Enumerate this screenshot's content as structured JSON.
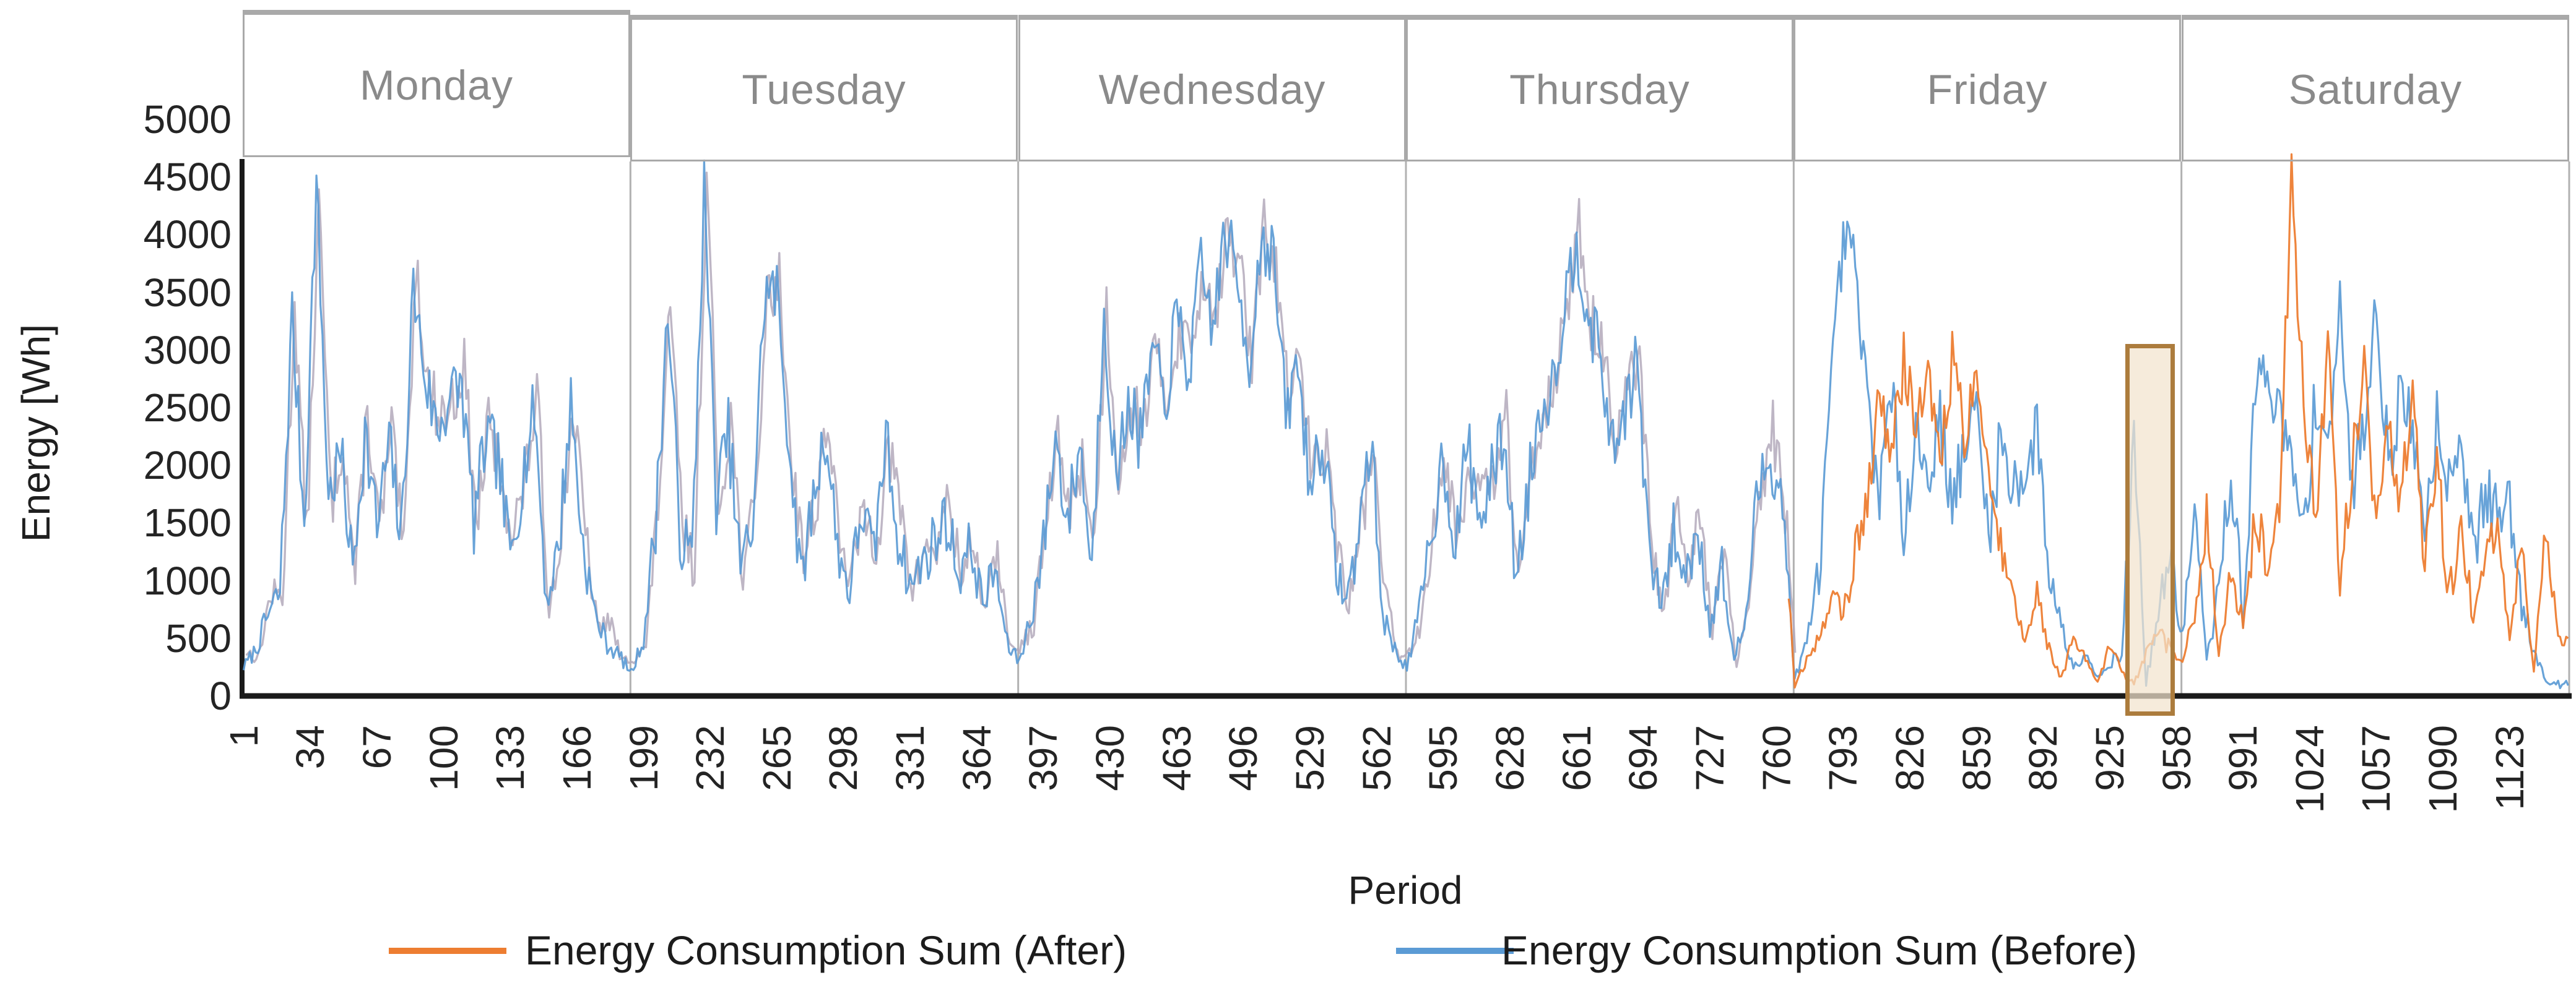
{
  "chart_data": {
    "type": "line",
    "xlabel": "Period",
    "ylabel": "Energy [Wh]",
    "ylim": [
      0,
      5000
    ],
    "ytick_interval": 500,
    "yticks": [
      0,
      500,
      1000,
      1500,
      2000,
      2500,
      3000,
      3500,
      4000,
      4500,
      5000
    ],
    "xticks": [
      1,
      34,
      67,
      100,
      133,
      166,
      199,
      232,
      265,
      298,
      331,
      364,
      397,
      430,
      463,
      496,
      529,
      562,
      595,
      628,
      661,
      694,
      727,
      760,
      793,
      826,
      859,
      892,
      925,
      958,
      991,
      1024,
      1057,
      1090,
      1123
    ],
    "x_range": [
      1,
      1152
    ],
    "grid": "vertical-day-separators-only",
    "legend_position": "bottom",
    "x_sampling": {
      "start": 1,
      "interval": 6,
      "count": 192
    },
    "day_bands": [
      {
        "label": "Monday",
        "start_period": 1,
        "end_period": 192
      },
      {
        "label": "Tuesday",
        "start_period": 193,
        "end_period": 384
      },
      {
        "label": "Wednesday",
        "start_period": 385,
        "end_period": 576
      },
      {
        "label": "Thursday",
        "start_period": 577,
        "end_period": 768
      },
      {
        "label": "Friday",
        "start_period": 769,
        "end_period": 960
      },
      {
        "label": "Saturday",
        "start_period": 961,
        "end_period": 1152
      }
    ],
    "series": [
      {
        "name": "Energy Consumption Sum (After)",
        "color": "#ED7D31",
        "overlap_color": "#B3A9BB",
        "overlap_until_period": 768,
        "values": [
          370,
          310,
          860,
          840,
          3380,
          1360,
          4250,
          1630,
          2220,
          1010,
          2460,
          1390,
          2280,
          1210,
          3750,
          2680,
          2420,
          2510,
          2860,
          1440,
          2330,
          1910,
          1400,
          1830,
          2620,
          710,
          1460,
          2490,
          1380,
          560,
          650,
          280,
          320,
          410,
          1660,
          3290,
          1480,
          1060,
          4480,
          1630,
          2420,
          1010,
          1660,
          3440,
          3580,
          2060,
          1200,
          1630,
          2420,
          1210,
          1060,
          1590,
          1280,
          2110,
          1600,
          880,
          1270,
          1260,
          1710,
          990,
          1380,
          660,
          1300,
          380,
          420,
          610,
          1460,
          2190,
          1580,
          2060,
          1300,
          3330,
          1920,
          2510,
          2360,
          2940,
          2580,
          3160,
          3000,
          3630,
          3320,
          3960,
          3760,
          2840,
          4080,
          3660,
          2600,
          2830,
          1920,
          2210,
          1360,
          740,
          1480,
          2110,
          900,
          330,
          370,
          610,
          1560,
          2040,
          1380,
          2060,
          1700,
          1830,
          2420,
          910,
          1960,
          2440,
          2780,
          3260,
          4050,
          3230,
          3020,
          2010,
          2660,
          2840,
          1280,
          660,
          1600,
          930,
          1620,
          510,
          1300,
          230,
          780,
          1660,
          2300,
          1630,
          100,
          300,
          500,
          900,
          700,
          1200,
          1800,
          2600,
          2100,
          2900,
          2400,
          2800,
          2000,
          2900,
          2300,
          2600,
          1900,
          1400,
          800,
          500,
          900,
          400,
          150,
          500,
          300,
          100,
          450,
          200,
          100,
          350,
          550,
          400,
          300,
          700,
          1500,
          400,
          1100,
          600,
          1500,
          1200,
          1600,
          4500,
          2600,
          1400,
          3100,
          1000,
          2000,
          2800,
          1500,
          2400,
          1700,
          2600,
          1100,
          2000,
          900,
          1400,
          700,
          1100,
          1500,
          500,
          1300,
          200,
          1500,
          450
        ]
      },
      {
        "name": "Energy Consumption Sum (Before)",
        "color": "#5B9BD5",
        "values": [
          250,
          400,
          700,
          900,
          3300,
          1500,
          4450,
          1700,
          2100,
          1100,
          2300,
          1450,
          2200,
          1350,
          3550,
          2750,
          2300,
          2600,
          2700,
          1500,
          2250,
          2050,
          1200,
          1900,
          2500,
          800,
          1300,
          2550,
          1300,
          700,
          450,
          350,
          200,
          500,
          1500,
          3350,
          1400,
          1200,
          4400,
          1700,
          2300,
          1100,
          1500,
          3500,
          3500,
          2200,
          1000,
          1700,
          2300,
          1300,
          900,
          1650,
          1200,
          2250,
          1400,
          950,
          1150,
          1350,
          1550,
          1050,
          1300,
          800,
          1100,
          450,
          300,
          700,
          1300,
          2250,
          1500,
          2200,
          1100,
          3400,
          1800,
          2600,
          2200,
          3000,
          2500,
          3300,
          2800,
          3700,
          3200,
          4050,
          3600,
          2900,
          4000,
          3800,
          2400,
          2900,
          1800,
          2300,
          1200,
          800,
          1400,
          2250,
          700,
          400,
          250,
          700,
          1400,
          2100,
          1300,
          2200,
          1500,
          1900,
          2300,
          1000,
          1800,
          2500,
          2700,
          3400,
          3950,
          3300,
          2900,
          2100,
          2500,
          2900,
          1200,
          800,
          1400,
          1000,
          1500,
          600,
          1100,
          300,
          700,
          1800,
          2100,
          1700,
          150,
          450,
          1100,
          2600,
          3950,
          3700,
          2500,
          1800,
          2600,
          1500,
          2300,
          1900,
          2400,
          1700,
          2100,
          2500,
          1400,
          2200,
          1850,
          1900,
          2300,
          1100,
          600,
          250,
          400,
          150,
          300,
          350,
          2250,
          120,
          700,
          1250,
          500,
          1600,
          300,
          900,
          2000,
          700,
          2600,
          2900,
          2400,
          2000,
          1400,
          2600,
          2200,
          3300,
          1800,
          2400,
          3400,
          2000,
          2600,
          2300,
          1500,
          2400,
          1900,
          2300,
          1200,
          1800,
          1500,
          1700,
          800,
          400,
          150,
          100
        ]
      }
    ],
    "noise": {
      "seed_after": 13,
      "seed_before": 7,
      "amplitude_after": 260,
      "amplitude_before": 300
    },
    "highlight_box": {
      "start_period": 934,
      "end_period": 956,
      "y_min": 0,
      "y_max": 3050,
      "fill": "#F3E3CD",
      "border": "#AC7C3D"
    }
  },
  "colors": {
    "axis": "#1A1A1A",
    "band_border": "#A9A9A9",
    "band_separator": "#B1B1B1",
    "band_label": "#8A8A8A",
    "tick_text": "#242424"
  }
}
